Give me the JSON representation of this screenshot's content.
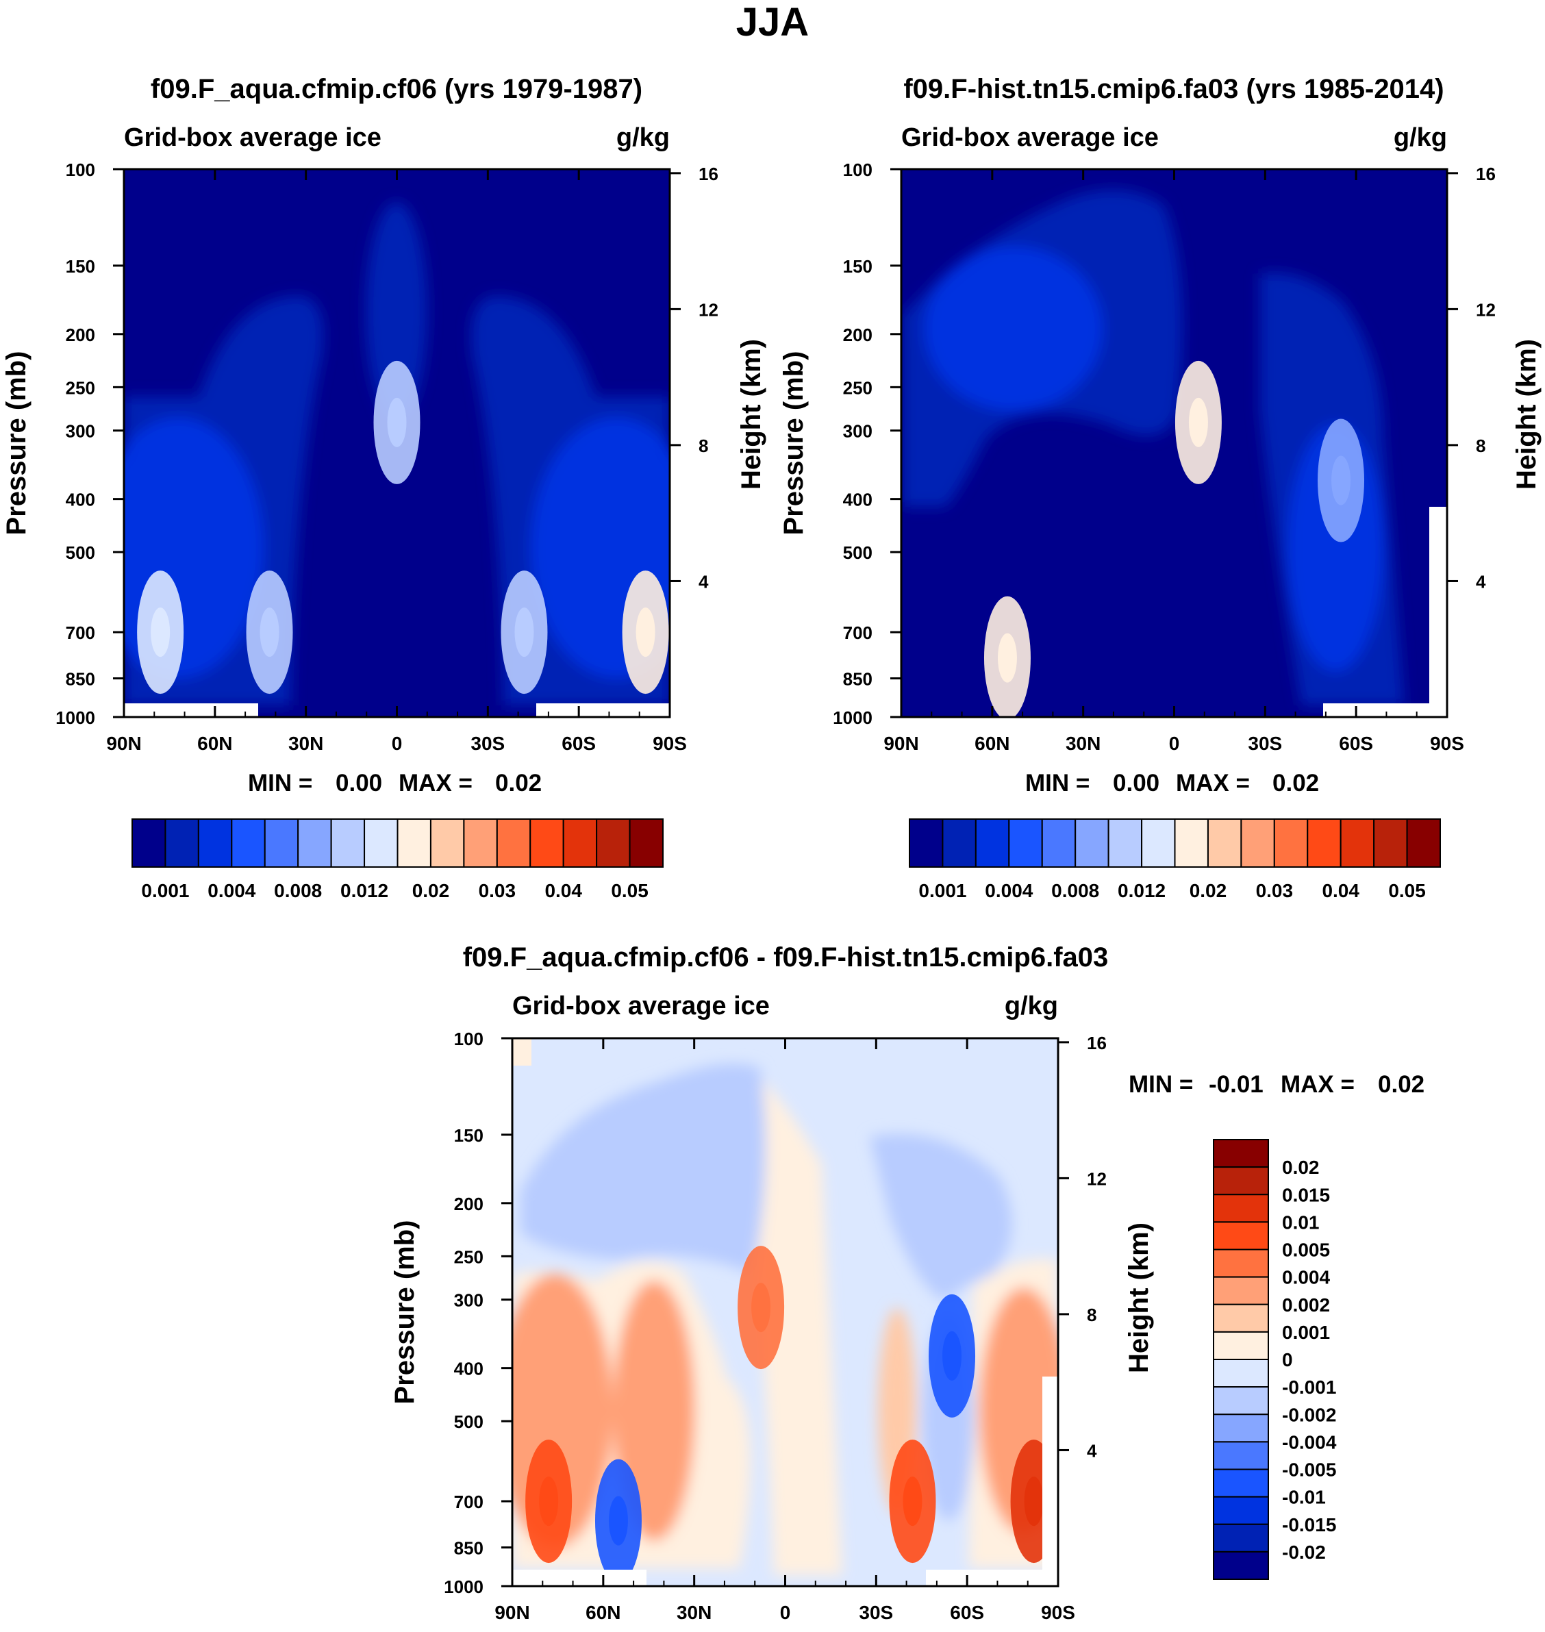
{
  "figure_title": "JJA",
  "chart_data": [
    {
      "type": "heatmap",
      "id": "panel-aqua",
      "title": "f09.F_aqua.cfmip.cf06 (yrs 1979-1987)",
      "left_label": "Grid-box average ice",
      "right_label": "g/kg",
      "ylabel": "Pressure (mb)",
      "ylabel_right": "Height (km)",
      "x_ticks": [
        "90N",
        "60N",
        "30N",
        "0",
        "30S",
        "60S",
        "90S"
      ],
      "y_ticks": [
        "100",
        "150",
        "200",
        "250",
        "300",
        "400",
        "500",
        "700",
        "850",
        "1000"
      ],
      "height_ticks": [
        "16",
        "12",
        "8",
        "4"
      ],
      "min_label": "MIN =",
      "min_value": "0.00",
      "max_label": "MAX =",
      "max_value": "0.02",
      "colorbar_labels": [
        "0.001",
        "0.004",
        "0.008",
        "0.012",
        "0.02",
        "0.03",
        "0.04",
        "0.05"
      ],
      "colors": [
        "#00008b",
        "#0022b4",
        "#0033e0",
        "#1a55ff",
        "#4a78ff",
        "#86a6ff",
        "#b8ccff",
        "#dce8ff",
        "#fff0e0",
        "#ffcaa8",
        "#ffa077",
        "#ff7240",
        "#ff4a16",
        "#e3330b",
        "#b8220a",
        "#880000"
      ],
      "features": [
        {
          "lat": -82,
          "p": 700,
          "level": 8
        },
        {
          "lat": -42,
          "p": 700,
          "level": 6
        },
        {
          "lat": 0,
          "p": 290,
          "level": 6
        },
        {
          "lat": 42,
          "p": 700,
          "level": 6
        },
        {
          "lat": 78,
          "p": 700,
          "level": 7
        }
      ]
    },
    {
      "type": "heatmap",
      "id": "panel-hist",
      "title": "f09.F-hist.tn15.cmip6.fa03 (yrs 1985-2014)",
      "left_label": "Grid-box average ice",
      "right_label": "g/kg",
      "ylabel": "Pressure (mb)",
      "ylabel_right": "Height (km)",
      "x_ticks": [
        "90N",
        "60N",
        "30N",
        "0",
        "30S",
        "60S",
        "90S"
      ],
      "y_ticks": [
        "100",
        "150",
        "200",
        "250",
        "300",
        "400",
        "500",
        "700",
        "850",
        "1000"
      ],
      "height_ticks": [
        "16",
        "12",
        "8",
        "4"
      ],
      "min_label": "MIN =",
      "min_value": "0.00",
      "max_label": "MAX =",
      "max_value": "0.02",
      "colorbar_labels": [
        "0.001",
        "0.004",
        "0.008",
        "0.012",
        "0.02",
        "0.03",
        "0.04",
        "0.05"
      ],
      "colors": [
        "#00008b",
        "#0022b4",
        "#0033e0",
        "#1a55ff",
        "#4a78ff",
        "#86a6ff",
        "#b8ccff",
        "#dce8ff",
        "#fff0e0",
        "#ffcaa8",
        "#ffa077",
        "#ff7240",
        "#ff4a16",
        "#e3330b",
        "#b8220a",
        "#880000"
      ],
      "features": [
        {
          "lat": -55,
          "p": 370,
          "level": 5
        },
        {
          "lat": -8,
          "p": 290,
          "level": 8
        },
        {
          "lat": 55,
          "p": 780,
          "level": 8
        }
      ]
    },
    {
      "type": "heatmap",
      "id": "panel-diff",
      "title": "f09.F_aqua.cfmip.cf06 - f09.F-hist.tn15.cmip6.fa03",
      "left_label": "Grid-box average ice",
      "right_label": "g/kg",
      "ylabel": "Pressure (mb)",
      "ylabel_right": "Height (km)",
      "x_ticks": [
        "90N",
        "60N",
        "30N",
        "0",
        "30S",
        "60S",
        "90S"
      ],
      "y_ticks": [
        "100",
        "150",
        "200",
        "250",
        "300",
        "400",
        "500",
        "700",
        "850",
        "1000"
      ],
      "height_ticks": [
        "16",
        "12",
        "8",
        "4"
      ],
      "min_label": "MIN =",
      "min_value": "-0.01",
      "max_label": "MAX =",
      "max_value": "0.02",
      "colorbar_labels": [
        "0.02",
        "0.015",
        "0.01",
        "0.005",
        "0.004",
        "0.002",
        "0.001",
        "0",
        "-0.001",
        "-0.002",
        "-0.004",
        "-0.005",
        "-0.01",
        "-0.015",
        "-0.02"
      ],
      "colors": [
        "#880000",
        "#b8220a",
        "#e3330b",
        "#ff4a16",
        "#ff7240",
        "#ffa077",
        "#ffcaa8",
        "#fff0e0",
        "#dce8ff",
        "#b8ccff",
        "#86a6ff",
        "#4a78ff",
        "#1a55ff",
        "#0033e0",
        "#0022b4",
        "#00008b"
      ],
      "features": [
        {
          "lat": -55,
          "p": 380,
          "level": -0.006
        },
        {
          "lat": 8,
          "p": 310,
          "level": 0.004
        },
        {
          "lat": -82,
          "p": 700,
          "level": 0.011
        },
        {
          "lat": -42,
          "p": 700,
          "level": 0.006
        },
        {
          "lat": 55,
          "p": 760,
          "level": -0.006
        },
        {
          "lat": 78,
          "p": 700,
          "level": 0.008
        }
      ]
    }
  ]
}
